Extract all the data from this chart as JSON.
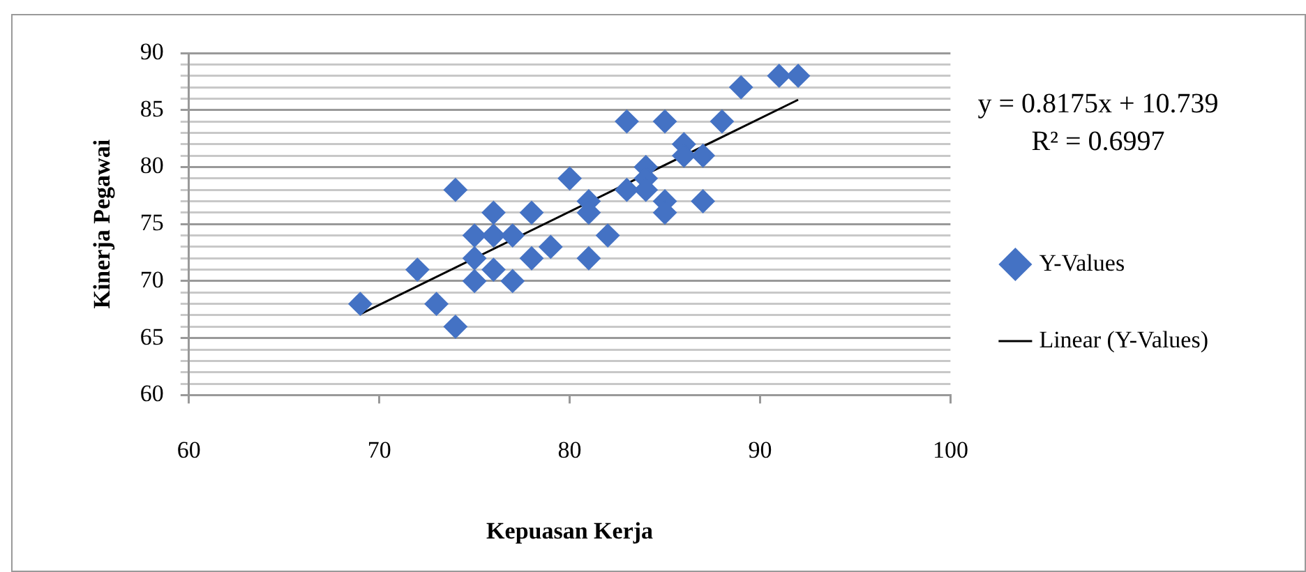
{
  "chart_data": {
    "type": "scatter",
    "xlabel": "Kepuasan Kerja",
    "ylabel": "Kinerja Pegawai",
    "xlim": [
      60,
      100
    ],
    "xticks": [
      60,
      70,
      80,
      90,
      100
    ],
    "ylim": [
      60,
      90
    ],
    "yticks": [
      60,
      {
        "value": 61,
        "label": null
      },
      {
        "value": 62,
        "label": null
      },
      {
        "value": 63,
        "label": null
      },
      {
        "value": 64,
        "label": null
      },
      65,
      {
        "value": 66,
        "label": null
      },
      {
        "value": 67,
        "label": null
      },
      {
        "value": 68,
        "label": null
      },
      {
        "value": 69,
        "label": null
      },
      70,
      {
        "value": 71,
        "label": null
      },
      {
        "value": 72,
        "label": null
      },
      {
        "value": 73,
        "label": null
      },
      {
        "value": 74,
        "label": null
      },
      75,
      {
        "value": 76,
        "label": null
      },
      {
        "value": 77,
        "label": null
      },
      {
        "value": 78,
        "label": null
      },
      {
        "value": 79,
        "label": null
      },
      80,
      {
        "value": 81,
        "label": null
      },
      {
        "value": 82,
        "label": null
      },
      {
        "value": 83,
        "label": null
      },
      {
        "value": 84,
        "label": null
      },
      85,
      {
        "value": 86,
        "label": null
      },
      {
        "value": 87,
        "label": null
      },
      {
        "value": 88,
        "label": null
      },
      {
        "value": 89,
        "label": null
      },
      90
    ],
    "grid": "y",
    "legend": "right",
    "marker": "diamond",
    "annotations": [
      "y = 0.8175x + 10.739",
      "R² = 0.6997"
    ],
    "series": [
      {
        "name": "Y-Values",
        "color": "#4472c4",
        "x": [
          69,
          72,
          73,
          74,
          74,
          75,
          75,
          75,
          76,
          76,
          76,
          77,
          77,
          78,
          78,
          79,
          80,
          81,
          81,
          81,
          82,
          83,
          83,
          84,
          84,
          84,
          85,
          85,
          85,
          86,
          86,
          87,
          87,
          88,
          89,
          91,
          92
        ],
        "values": [
          68,
          71,
          68,
          78,
          66,
          74,
          72,
          70,
          76,
          74,
          71,
          74,
          70,
          76,
          72,
          73,
          79,
          77,
          76,
          72,
          74,
          84,
          78,
          80,
          79,
          78,
          84,
          77,
          76,
          82,
          81,
          81,
          77,
          84,
          87,
          88,
          88
        ]
      },
      {
        "name": "Linear (Y-Values)",
        "color": "#000000",
        "type": "line",
        "marker": "none",
        "x": [
          69,
          92
        ],
        "values": [
          67.1,
          85.9
        ]
      }
    ]
  }
}
